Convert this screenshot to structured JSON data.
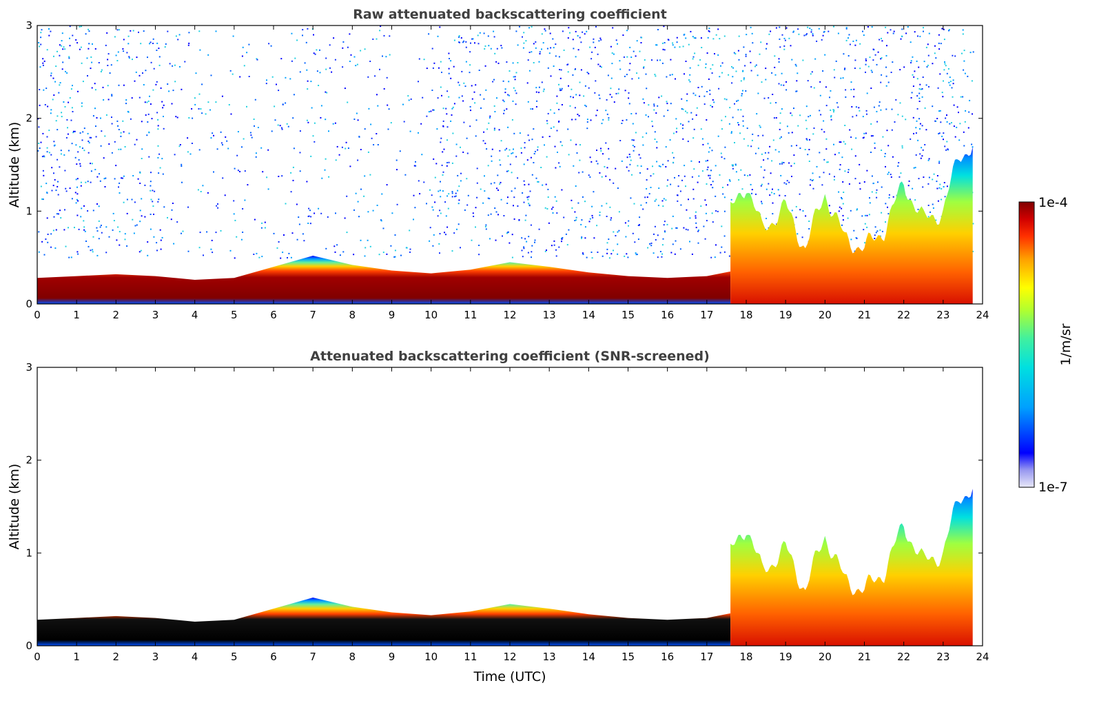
{
  "chart_data": [
    {
      "type": "heatmap",
      "title": "Raw attenuated backscattering coefficient",
      "xlabel": "",
      "ylabel": "Altitude (km)",
      "xlim": [
        0,
        24
      ],
      "ylim": [
        0,
        3
      ],
      "xticks": [
        "0",
        "1",
        "2",
        "3",
        "4",
        "5",
        "6",
        "7",
        "8",
        "9",
        "10",
        "11",
        "12",
        "13",
        "14",
        "15",
        "16",
        "17",
        "18",
        "19",
        "20",
        "21",
        "22",
        "23",
        "24"
      ],
      "yticks": [
        "0",
        "1",
        "2",
        "3"
      ],
      "features": {
        "stable_layer_top_km": [
          [
            0,
            0.28
          ],
          [
            1,
            0.3
          ],
          [
            2,
            0.32
          ],
          [
            3,
            0.3
          ],
          [
            4,
            0.26
          ],
          [
            5,
            0.28
          ],
          [
            6,
            0.4
          ],
          [
            7,
            0.52
          ],
          [
            8,
            0.42
          ],
          [
            9,
            0.36
          ],
          [
            10,
            0.33
          ],
          [
            11,
            0.37
          ],
          [
            12,
            0.45
          ],
          [
            13,
            0.4
          ],
          [
            14,
            0.34
          ],
          [
            15,
            0.3
          ],
          [
            16,
            0.28
          ],
          [
            17,
            0.3
          ],
          [
            17.6,
            0.35
          ]
        ],
        "convective_top_km": [
          [
            17.6,
            1.0
          ],
          [
            18,
            1.3
          ],
          [
            18.4,
            0.8
          ],
          [
            19,
            1.05
          ],
          [
            19.5,
            0.6
          ],
          [
            20,
            1.2
          ],
          [
            20.5,
            0.7
          ],
          [
            21,
            0.6
          ],
          [
            21.5,
            0.8
          ],
          [
            22,
            1.3
          ],
          [
            22.5,
            0.9
          ],
          [
            23,
            1.0
          ],
          [
            23.4,
            1.6
          ],
          [
            23.75,
            1.7
          ]
        ],
        "noise_band_km": [
          0.5,
          3.0
        ]
      }
    },
    {
      "type": "heatmap",
      "title": "Attenuated backscattering coefficient (SNR-screened)",
      "xlabel": "Time (UTC)",
      "ylabel": "Altitude (km)",
      "xlim": [
        0,
        24
      ],
      "ylim": [
        0,
        3
      ],
      "xticks": [
        "0",
        "1",
        "2",
        "3",
        "4",
        "5",
        "6",
        "7",
        "8",
        "9",
        "10",
        "11",
        "12",
        "13",
        "14",
        "15",
        "16",
        "17",
        "18",
        "19",
        "20",
        "21",
        "22",
        "23",
        "24"
      ],
      "yticks": [
        "0",
        "1",
        "2",
        "3"
      ],
      "features": {
        "stable_layer_top_km": [
          [
            0,
            0.28
          ],
          [
            1,
            0.3
          ],
          [
            2,
            0.32
          ],
          [
            3,
            0.3
          ],
          [
            4,
            0.26
          ],
          [
            5,
            0.28
          ],
          [
            6,
            0.4
          ],
          [
            7,
            0.52
          ],
          [
            8,
            0.42
          ],
          [
            9,
            0.36
          ],
          [
            10,
            0.33
          ],
          [
            11,
            0.37
          ],
          [
            12,
            0.45
          ],
          [
            13,
            0.4
          ],
          [
            14,
            0.34
          ],
          [
            15,
            0.3
          ],
          [
            16,
            0.28
          ],
          [
            17,
            0.3
          ],
          [
            17.6,
            0.35
          ]
        ],
        "convective_top_km": [
          [
            17.6,
            1.0
          ],
          [
            18,
            1.3
          ],
          [
            18.4,
            0.8
          ],
          [
            19,
            1.05
          ],
          [
            19.5,
            0.6
          ],
          [
            20,
            1.2
          ],
          [
            20.5,
            0.7
          ],
          [
            21,
            0.6
          ],
          [
            21.5,
            0.8
          ],
          [
            22,
            1.3
          ],
          [
            22.5,
            0.9
          ],
          [
            23,
            1.0
          ],
          [
            23.4,
            1.6
          ],
          [
            23.75,
            1.7
          ]
        ],
        "noise_band_km": null
      }
    }
  ],
  "colorbar": {
    "label": "1/m/sr",
    "max_label": "1e-4",
    "min_label": "1e-7",
    "scale": "log",
    "range": [
      1e-07,
      0.0001
    ],
    "colors": [
      "#e8e8f8",
      "#c8c8f0",
      "#8080f0",
      "#0000ff",
      "#0050ff",
      "#00a0ff",
      "#00e0e0",
      "#40f0a0",
      "#a0ff40",
      "#ffff00",
      "#ffb000",
      "#ff5000",
      "#e00000",
      "#800000"
    ]
  },
  "colors": {
    "title_text": "#404040",
    "axis": "#000000",
    "background": "#ffffff",
    "saturated": "#000000"
  }
}
